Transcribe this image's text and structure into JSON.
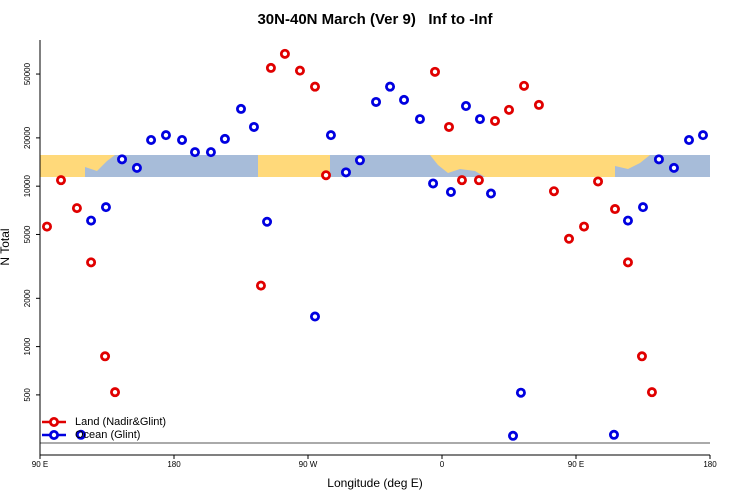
{
  "chart_data": {
    "type": "scatter",
    "title": "30N-40N March (Ver 9)   Inf to -Inf",
    "x_label": "Longitude (deg E)",
    "y_label": "N Total",
    "log_y": true,
    "xlim": [
      90,
      540
    ],
    "ylim": [
      211,
      81500
    ],
    "xticks": [
      {
        "value": 90,
        "label": "90 E"
      },
      {
        "value": 180,
        "label": "180"
      },
      {
        "value": 270,
        "label": "90 W"
      },
      {
        "value": 360,
        "label": "0"
      },
      {
        "value": 450,
        "label": "90 E"
      },
      {
        "value": 540,
        "label": "180"
      }
    ],
    "yticks": [
      500,
      1000,
      2000,
      5000,
      10000,
      20000,
      50000
    ],
    "legend_position": "lower left",
    "series": [
      {
        "name": "Land (Nadir&Glint)",
        "color": "#e00000",
        "x": [
          94.7,
          104.1,
          114.8,
          124.3,
          133.7,
          140.4,
          238.4,
          245.1,
          254.5,
          264.6,
          274.7,
          282.1,
          355.3,
          364.7,
          373.4,
          384.8,
          395.6,
          405.0,
          415.1,
          425.1,
          435.2,
          445.3,
          455.4,
          464.8,
          476.2,
          484.9,
          494.3,
          501.0
        ],
        "values": [
          5600,
          10900,
          7300,
          3350,
          870,
          520,
          2400,
          54600,
          66800,
          52500,
          41700,
          11700,
          51600,
          23400,
          10900,
          10900,
          25500,
          29900,
          42200,
          32100,
          9300,
          4700,
          5600,
          10700,
          7200,
          3350,
          870,
          520
        ]
      },
      {
        "name": "Ocean (Glint)",
        "color": "#0000e0",
        "x": [
          117.5,
          124.3,
          134.3,
          145.1,
          155.1,
          164.6,
          174.6,
          185.4,
          194.1,
          204.8,
          214.2,
          225.0,
          233.7,
          242.5,
          274.7,
          285.4,
          295.5,
          304.9,
          315.7,
          325.1,
          334.5,
          345.2,
          354.0,
          366.0,
          376.1,
          385.5,
          392.9,
          407.7,
          413.0,
          475.5,
          484.9,
          495.0,
          505.7,
          515.8,
          525.9,
          535.3
        ],
        "values": [
          282,
          6100,
          7400,
          14700,
          13000,
          19400,
          20800,
          19400,
          16300,
          16300,
          19700,
          30300,
          23400,
          6000,
          1540,
          20800,
          12200,
          14500,
          33500,
          41700,
          34500,
          26200,
          10400,
          9200,
          31600,
          26200,
          9000,
          278,
          516,
          282,
          6100,
          7400,
          14700,
          13000,
          19400,
          20800
        ]
      }
    ]
  }
}
